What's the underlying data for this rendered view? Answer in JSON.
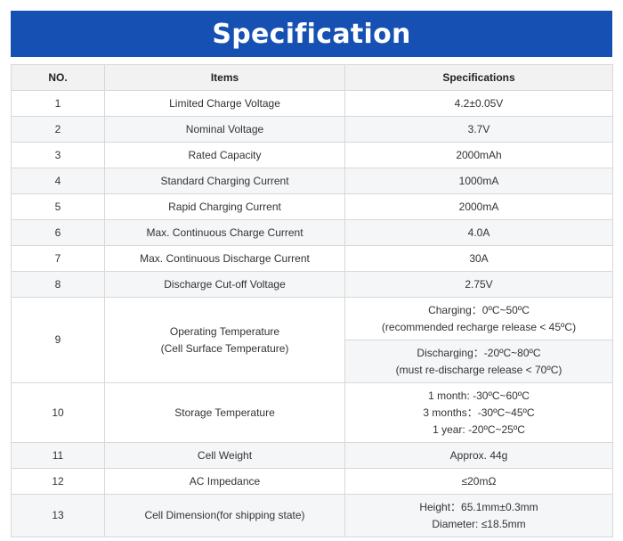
{
  "title": "Specification",
  "headers": {
    "no": "NO.",
    "items": "Items",
    "specs": "Specifications"
  },
  "rows": {
    "r1": {
      "no": "1",
      "item": "Limited Charge Voltage",
      "spec": "4.2±0.05V"
    },
    "r2": {
      "no": "2",
      "item": "Nominal Voltage",
      "spec": "3.7V"
    },
    "r3": {
      "no": "3",
      "item": "Rated Capacity",
      "spec": "2000mAh"
    },
    "r4": {
      "no": "4",
      "item": "Standard Charging Current",
      "spec": "1000mA"
    },
    "r5": {
      "no": "5",
      "item": "Rapid Charging Current",
      "spec": "2000mA"
    },
    "r6": {
      "no": "6",
      "item": "Max. Continuous Charge Current",
      "spec": "4.0A"
    },
    "r7": {
      "no": "7",
      "item": "Max. Continuous Discharge Current",
      "spec": "30A"
    },
    "r8": {
      "no": "8",
      "item": "Discharge Cut-off Voltage",
      "spec": "2.75V"
    },
    "r9": {
      "no": "9",
      "item_line1": "Operating Temperature",
      "item_line2": "(Cell Surface Temperature)",
      "charging_line1": "Charging：0ºC~50ºC",
      "charging_line2": "(recommended recharge release < 45ºC)",
      "discharging_line1": "Discharging：-20ºC~80ºC",
      "discharging_line2": "(must re-discharge release < 70ºC)"
    },
    "r10": {
      "no": "10",
      "item": "Storage Temperature",
      "spec_line1": "1 month: -30ºC~60ºC",
      "spec_line2": "3 months：-30ºC~45ºC",
      "spec_line3": "1 year: -20ºC~25ºC"
    },
    "r11": {
      "no": "11",
      "item": "Cell Weight",
      "spec": "Approx. 44g"
    },
    "r12": {
      "no": "12",
      "item": "AC Impedance",
      "spec": "≤20mΩ"
    },
    "r13": {
      "no": "13",
      "item": "Cell Dimension(for shipping state)",
      "spec_line1": "Height：65.1mm±0.3mm",
      "spec_line2": "Diameter: ≤18.5mm"
    }
  }
}
